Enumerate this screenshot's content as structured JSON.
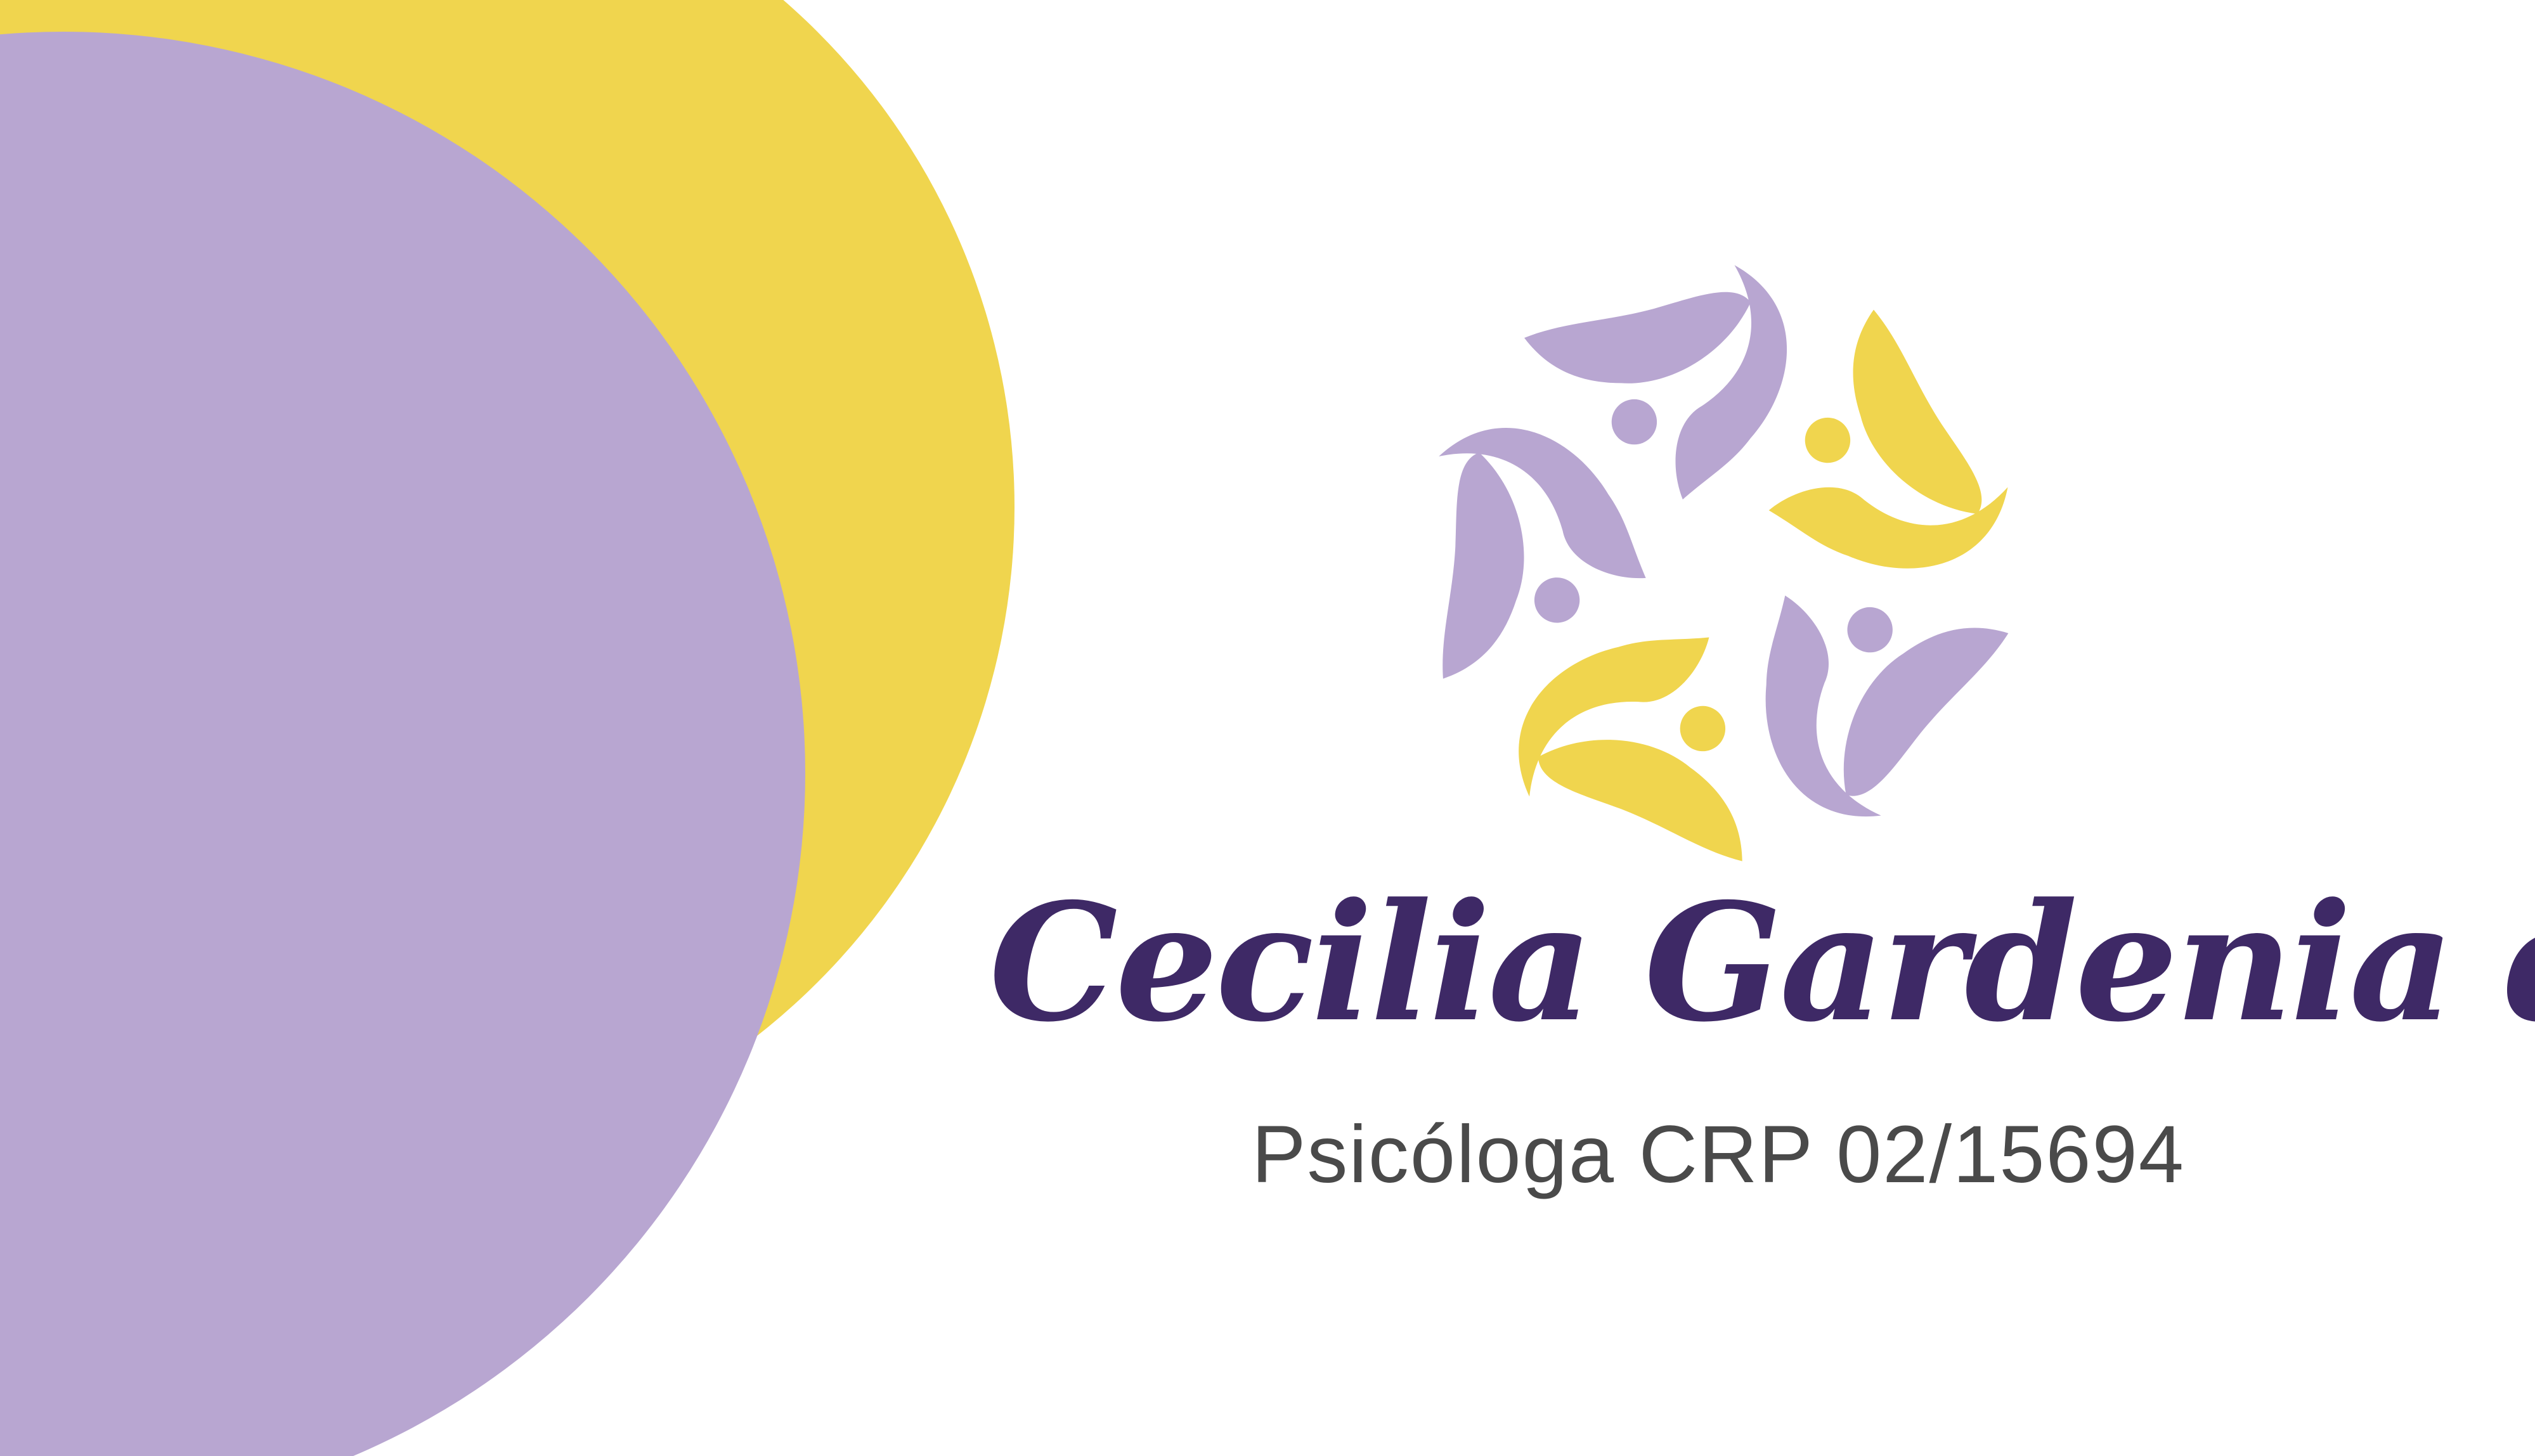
{
  "card": {
    "name": "Cecilia Gardenia de Sales",
    "profession": "Psicóloga CRP 02/15694"
  },
  "logo": {
    "icon": "flower-people-logo-icon"
  },
  "colors": {
    "background": "#ffffff",
    "yellow": "#f0d54e",
    "lavender": "#b8a6d1",
    "name_text": "#3e2966",
    "subtitle_text": "#4a4a4a"
  }
}
